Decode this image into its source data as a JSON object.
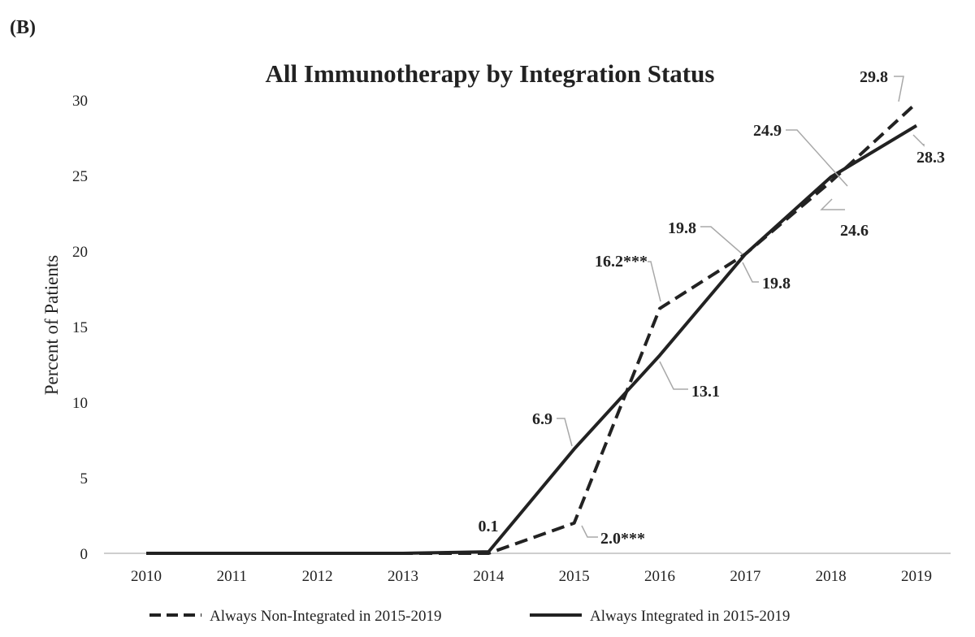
{
  "chart_data": {
    "type": "line",
    "panel_label": "(B)",
    "title": "All Immunotherapy by Integration Status",
    "xlabel": "",
    "ylabel": "Percent of Patients",
    "x": [
      2010,
      2011,
      2012,
      2013,
      2014,
      2015,
      2016,
      2017,
      2018,
      2019
    ],
    "ylim": [
      0,
      30
    ],
    "yticks": [
      0,
      5,
      10,
      15,
      20,
      25,
      30
    ],
    "grid": false,
    "legend_position": "bottom",
    "series": [
      {
        "name": "Always Non-Integrated in 2015-2019",
        "style": "dashed",
        "color": "#222222",
        "values": [
          0,
          0,
          0,
          0,
          0,
          2.0,
          16.2,
          19.8,
          24.6,
          29.8
        ],
        "labels": [
          "",
          "",
          "",
          "",
          "",
          "2.0***",
          "16.2***",
          "19.8",
          "24.6",
          "29.8"
        ]
      },
      {
        "name": "Always Integrated in 2015-2019",
        "style": "solid",
        "color": "#222222",
        "values": [
          0,
          0,
          0,
          0,
          0.1,
          6.9,
          13.1,
          19.8,
          24.9,
          28.3
        ],
        "labels": [
          "",
          "",
          "",
          "",
          "0.1",
          "6.9",
          "13.1",
          "19.8",
          "24.9",
          "28.3"
        ]
      }
    ]
  }
}
